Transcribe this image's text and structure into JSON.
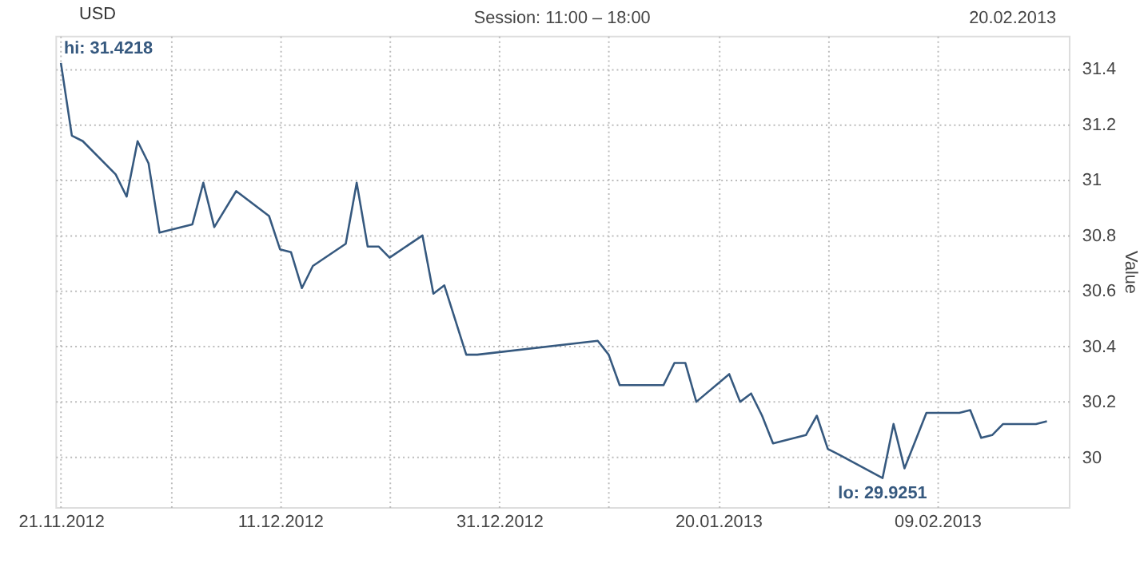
{
  "chart_data": {
    "type": "line",
    "title": "Session: 11:00 – 18:00",
    "subtitle": "20.02.2013",
    "ylabel": "Value",
    "legend": "top left",
    "grid": true,
    "marker": "none",
    "line_style": "solid",
    "x": [
      "2012-11-21",
      "2012-11-22",
      "2012-11-23",
      "2012-11-26",
      "2012-11-27",
      "2012-11-28",
      "2012-11-29",
      "2012-11-30",
      "2012-12-03",
      "2012-12-04",
      "2012-12-05",
      "2012-12-07",
      "2012-12-10",
      "2012-12-11",
      "2012-12-12",
      "2012-12-13",
      "2012-12-14",
      "2012-12-17",
      "2012-12-18",
      "2012-12-19",
      "2012-12-20",
      "2012-12-21",
      "2012-12-24",
      "2012-12-25",
      "2012-12-26",
      "2012-12-28",
      "2012-12-29",
      "2013-01-09",
      "2013-01-10",
      "2013-01-11",
      "2013-01-14",
      "2013-01-15",
      "2013-01-16",
      "2013-01-17",
      "2013-01-18",
      "2013-01-21",
      "2013-01-22",
      "2013-01-23",
      "2013-01-24",
      "2013-01-25",
      "2013-01-28",
      "2013-01-29",
      "2013-01-30",
      "2013-01-31",
      "2013-02-04",
      "2013-02-05",
      "2013-02-06",
      "2013-02-08",
      "2013-02-11",
      "2013-02-12",
      "2013-02-13",
      "2013-02-14",
      "2013-02-15",
      "2013-02-18",
      "2013-02-19"
    ],
    "series": [
      {
        "name": "USD",
        "color": "#36597f",
        "values": [
          31.4218,
          31.16,
          31.14,
          31.02,
          30.94,
          31.14,
          31.06,
          30.81,
          30.84,
          30.99,
          30.83,
          30.96,
          30.87,
          30.75,
          30.74,
          30.61,
          30.69,
          30.77,
          30.99,
          30.76,
          30.76,
          30.72,
          30.8,
          30.59,
          30.62,
          30.37,
          30.37,
          30.42,
          30.37,
          30.26,
          30.26,
          30.26,
          30.34,
          30.34,
          30.2,
          30.3,
          30.2,
          30.23,
          30.15,
          30.05,
          30.08,
          30.15,
          30.03,
          30.01,
          29.9251,
          30.12,
          29.96,
          30.16,
          30.16,
          30.17,
          30.07,
          30.08,
          30.12,
          30.12,
          30.13
        ]
      }
    ],
    "xlim": [
      "2012-11-20T12:00",
      "2013-02-21"
    ],
    "xticks": [
      {
        "value": "2012-11-21",
        "label": "21.11.2012"
      },
      {
        "value": "2012-12-01",
        "label": null
      },
      {
        "value": "2012-12-11",
        "label": "11.12.2012"
      },
      {
        "value": "2012-12-21",
        "label": null
      },
      {
        "value": "2012-12-31",
        "label": "31.12.2012"
      },
      {
        "value": "2013-01-10",
        "label": null
      },
      {
        "value": "2013-01-20",
        "label": "20.01.2013"
      },
      {
        "value": "2013-01-30",
        "label": null
      },
      {
        "value": "2013-02-09",
        "label": "09.02.2013"
      }
    ],
    "ylim": [
      29.82,
      31.52
    ],
    "yticks": [
      30,
      30.2,
      30.4,
      30.6,
      30.8,
      31,
      31.2,
      31.4
    ],
    "annotations": [
      {
        "text": "hi: 31.4218",
        "x": "2012-11-21",
        "y": 31.4218
      },
      {
        "text": "lo: 29.9251",
        "x": "2013-02-04",
        "y": 29.9251
      }
    ]
  }
}
